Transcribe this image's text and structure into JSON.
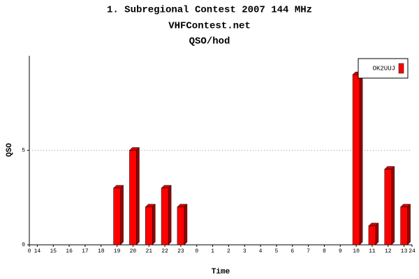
{
  "chart_data": {
    "type": "bar",
    "title": "1. Subregional Contest 2007 144 MHz",
    "subtitle": "VHFContest.net",
    "subtitle2": "QSO/hod",
    "x_label": "Time",
    "y_label": "QSO",
    "categories": [
      "14",
      "15",
      "16",
      "17",
      "18",
      "19",
      "20",
      "21",
      "22",
      "23",
      "0",
      "1",
      "2",
      "3",
      "4",
      "5",
      "6",
      "7",
      "8",
      "9",
      "10",
      "11",
      "12",
      "13"
    ],
    "series": [
      {
        "name": "OK2UUJ",
        "color": "#ff0000",
        "values": [
          0,
          0,
          0,
          0,
          0,
          3,
          5,
          2,
          3,
          2,
          0,
          0,
          0,
          0,
          0,
          0,
          0,
          0,
          0,
          0,
          9,
          1,
          4,
          2
        ]
      }
    ],
    "xlim": [
      0,
      24
    ],
    "ylim": [
      0,
      10
    ],
    "yticks": [
      0,
      5
    ],
    "grid": true,
    "legend": "top-right"
  }
}
